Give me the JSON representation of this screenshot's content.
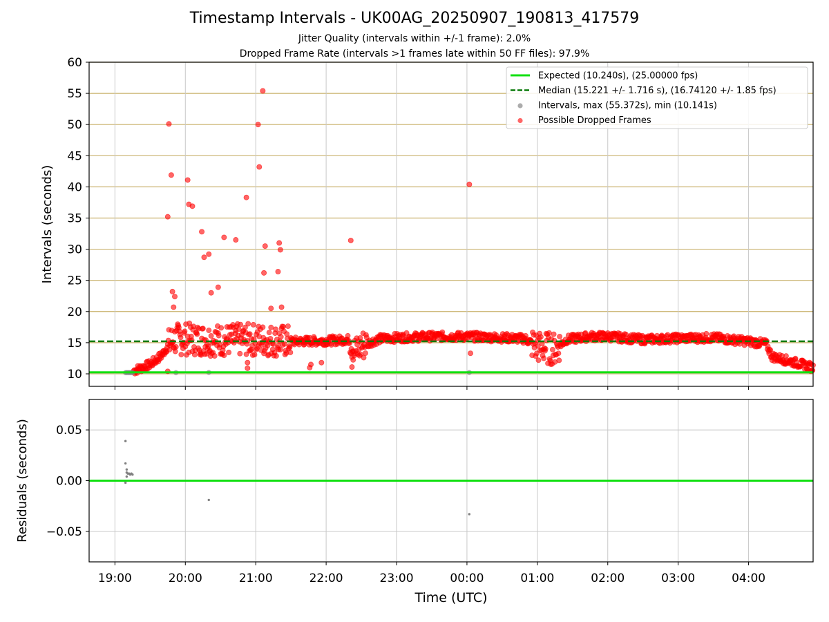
{
  "title": "Timestamp Intervals - UK00AG_20250907_190813_417579",
  "subtitle_lines": [
    "Jitter Quality (intervals within +/-1 frame): 2.0%",
    "Dropped Frame Rate (intervals >1 frames late within 50 FF files): 97.9%"
  ],
  "colors": {
    "expected": "#11e011",
    "median": "#0a7a0a",
    "intervals": "#808080",
    "dropped": "#ff0000",
    "gold_grid": "#c8b06a",
    "grid": "#c8c8c8"
  },
  "chart_data": [
    {
      "type": "scatter",
      "ylabel": "Intervals (seconds)",
      "ylim": [
        8,
        60
      ],
      "y_ticks": [
        "10",
        "15",
        "20",
        "25",
        "30",
        "35",
        "40",
        "45",
        "50",
        "55",
        "60"
      ],
      "grid": true,
      "legend_position": "top-right",
      "legend": [
        "Expected (10.240s), (25.00000 fps)",
        "Median (15.221 +/- 1.716 s), (16.74120 +/- 1.85 fps)",
        "Intervals, max (55.372s), min (10.141s)",
        "Possible Dropped Frames"
      ],
      "expected_line": 10.24,
      "median_line": 15.221,
      "series": [
        {
          "x": [
            "19:09",
            "19:10",
            "19:11",
            "19:12",
            "19:13",
            "19:14",
            "19:15",
            "19:52",
            "20:20",
            "00:02"
          ],
          "y": [
            10.2,
            10.2,
            10.21,
            10.2,
            10.2,
            10.21,
            10.2,
            10.2,
            10.23,
            10.22
          ]
        },
        {
          "x": [
            "19:45",
            "19:46",
            "19:48",
            "19:49",
            "19:50",
            "19:51",
            "20:02",
            "20:03",
            "20:06",
            "20:14",
            "20:16",
            "20:20",
            "20:22",
            "20:28",
            "20:33",
            "20:43",
            "20:52",
            "20:53",
            "21:02",
            "21:03",
            "21:06",
            "21:07",
            "21:08",
            "21:13",
            "21:19",
            "21:20",
            "21:21",
            "21:22",
            "21:46",
            "21:47",
            "21:56",
            "22:21",
            "22:22",
            "00:02",
            "00:03",
            "19:45",
            "20:53"
          ],
          "y": [
            35.2,
            50.1,
            41.9,
            23.2,
            20.7,
            22.4,
            41.1,
            37.2,
            36.9,
            32.8,
            28.7,
            29.2,
            23.0,
            23.9,
            31.9,
            31.5,
            38.3,
            11.8,
            50.0,
            43.2,
            55.4,
            26.2,
            30.5,
            20.5,
            26.4,
            31.0,
            29.9,
            20.7,
            11.0,
            11.5,
            11.8,
            31.4,
            11.1,
            40.4,
            13.3,
            10.4,
            10.9
          ]
        }
      ],
      "dense_band": [
        [
          "19:16",
          10.5
        ],
        [
          "19:30",
          11.5
        ],
        [
          "19:40",
          13.0
        ],
        [
          "19:45",
          14.5
        ],
        [
          "19:50",
          15.5
        ],
        [
          "20:00",
          15.6
        ],
        [
          "20:30",
          15.4
        ],
        [
          "21:00",
          15.5
        ],
        [
          "21:30",
          15.2
        ],
        [
          "22:00",
          15.3
        ],
        [
          "22:20",
          15.5
        ],
        [
          "22:25",
          13.5
        ],
        [
          "22:30",
          14.5
        ],
        [
          "22:45",
          15.6
        ],
        [
          "23:00",
          15.8
        ],
        [
          "23:30",
          16.0
        ],
        [
          "00:00",
          16.0
        ],
        [
          "00:30",
          15.8
        ],
        [
          "00:50",
          15.6
        ],
        [
          "01:00",
          14.3
        ],
        [
          "01:15",
          14.0
        ],
        [
          "01:25",
          15.5
        ],
        [
          "01:45",
          16.0
        ],
        [
          "02:00",
          16.0
        ],
        [
          "02:30",
          15.5
        ],
        [
          "03:00",
          15.7
        ],
        [
          "03:30",
          15.8
        ],
        [
          "04:00",
          15.2
        ],
        [
          "04:15",
          14.8
        ],
        [
          "04:20",
          12.8
        ],
        [
          "04:40",
          11.8
        ],
        [
          "04:55",
          11.0
        ]
      ]
    },
    {
      "type": "scatter",
      "xlabel": "Time (UTC)",
      "ylabel": "Residuals (seconds)",
      "ylim": [
        -0.08,
        0.08
      ],
      "y_ticks": [
        "0.05",
        "0.00",
        "−0.05"
      ],
      "x_ticks": [
        "19:00",
        "20:00",
        "21:00",
        "22:00",
        "23:00",
        "00:00",
        "01:00",
        "02:00",
        "03:00",
        "04:00"
      ],
      "xlim": [
        "18:38",
        "04:55"
      ],
      "grid": true,
      "zero_line": 0.0,
      "series": [
        {
          "x": [
            "19:09",
            "19:09",
            "19:10",
            "19:10",
            "19:11",
            "19:12",
            "19:13",
            "19:14",
            "19:15",
            "19:09",
            "19:10",
            "20:20",
            "00:02"
          ],
          "y": [
            0.039,
            0.017,
            0.011,
            0.008,
            0.007,
            0.007,
            0.006,
            0.007,
            0.006,
            -0.002,
            0.004,
            -0.019,
            -0.033
          ]
        }
      ]
    }
  ]
}
